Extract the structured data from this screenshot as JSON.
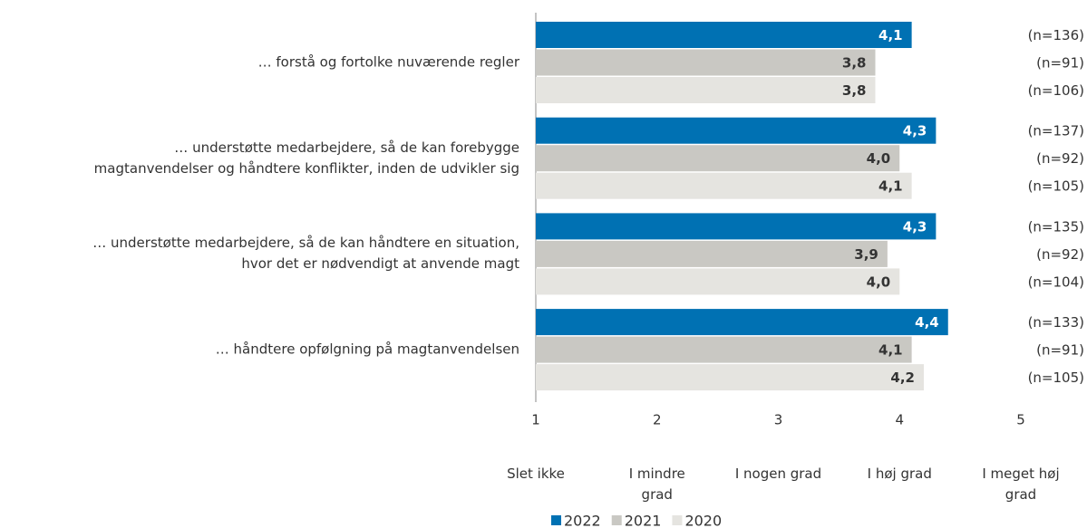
{
  "chart_data": {
    "type": "bar",
    "orientation": "horizontal",
    "categories": [
      "… forstå og fortolke nuværende regler",
      "… understøtte medarbejdere, så de kan forebygge magtanvendelser og håndtere konflikter, inden de udvikler sig",
      "… understøtte medarbejdere, så de kan håndtere en situation, hvor det er nødvendigt at anvende magt",
      "… håndtere opfølgning på magtanvendelsen"
    ],
    "series": [
      {
        "name": "2022",
        "color": "#0071b3",
        "values": [
          4.1,
          4.3,
          4.3,
          4.4
        ],
        "value_labels": [
          "4,1",
          "4,3",
          "4,3",
          "4,4"
        ],
        "n_labels": [
          "(n=136)",
          "(n=137)",
          "(n=135)",
          "(n=133)"
        ]
      },
      {
        "name": "2021",
        "color": "#c9c8c3",
        "values": [
          3.8,
          4.0,
          3.9,
          4.1
        ],
        "value_labels": [
          "3,8",
          "4,0",
          "3,9",
          "4,1"
        ],
        "n_labels": [
          "(n=91)",
          "(n=92)",
          "(n=92)",
          "(n=91)"
        ]
      },
      {
        "name": "2020",
        "color": "#e5e4e0",
        "values": [
          3.8,
          4.1,
          4.0,
          4.2
        ],
        "value_labels": [
          "3,8",
          "4,1",
          "4,0",
          "4,2"
        ],
        "n_labels": [
          "(n=106)",
          "(n=105)",
          "(n=104)",
          "(n=105)"
        ]
      }
    ],
    "xlim": [
      1,
      5
    ],
    "xticks": [
      1,
      2,
      3,
      4,
      5
    ],
    "scale_labels": [
      "Slet ikke",
      "I mindre grad",
      "I nogen grad",
      "I høj grad",
      "I meget høj grad"
    ],
    "legend": "bottom"
  }
}
